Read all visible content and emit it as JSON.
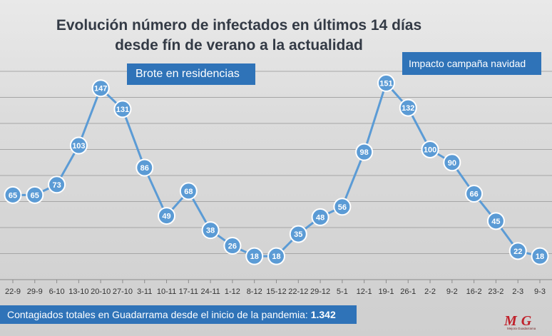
{
  "chart_data": {
    "type": "line",
    "title_lines": [
      "Evolución número de infectados en últimos 14 días",
      "desde fín de verano a la actualidad"
    ],
    "categories": [
      "22-9",
      "29-9",
      "6-10",
      "13-10",
      "20-10",
      "27-10",
      "3-11",
      "10-11",
      "17-11",
      "24-11",
      "1-12",
      "8-12",
      "15-12",
      "22-12",
      "29-12",
      "5-1",
      "12-1",
      "19-1",
      "26-1",
      "2-2",
      "9-2",
      "16-2",
      "23-2",
      "2-3",
      "9-3"
    ],
    "values": [
      65,
      65,
      73,
      103,
      147,
      131,
      86,
      49,
      68,
      38,
      26,
      18,
      18,
      35,
      48,
      56,
      98,
      151,
      132,
      100,
      90,
      66,
      45,
      22,
      18
    ],
    "ylim": [
      0,
      160
    ],
    "grid": true,
    "legend": "none",
    "annotations": [
      "Brote en residencias",
      "Impacto  campaña navidad"
    ],
    "colors": {
      "line": "#5b9bd5",
      "marker_fill": "#5b9bd5",
      "marker_stroke": "#ffffff",
      "grid": "#a6a6a6"
    }
  },
  "footer": {
    "text": "Contagiados totales en Guadarrama desde el inicio de la pandemia: ",
    "total": "1.342"
  },
  "logo": {
    "letters": "MG",
    "small_text": "Mejora Guadarrama"
  }
}
